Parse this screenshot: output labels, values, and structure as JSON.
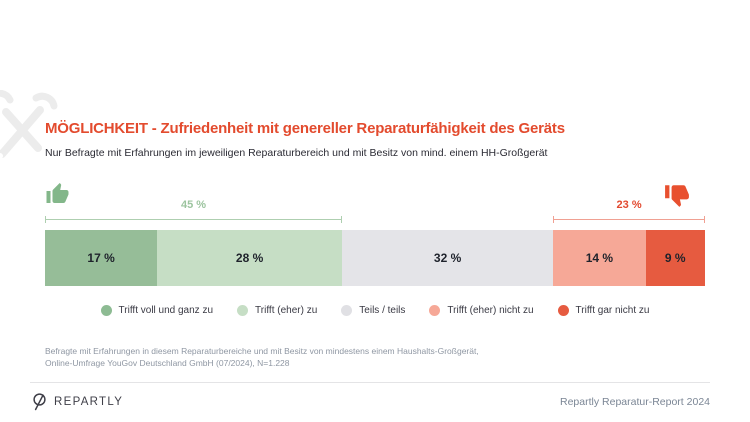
{
  "header": {
    "title": "MÖGLICHKEIT - Zufriedenheit mit genereller Reparaturfähigkeit des Geräts",
    "subtitle": "Nur Befragte mit Erfahrungen im jeweiligen Reparaturbereich und mit Besitz von mind. einem HH-Großgerät",
    "title_color": "#e34b2e"
  },
  "sentiment": {
    "positive_icon": "thumbs-up",
    "negative_icon": "thumbs-down",
    "positive_color": "#83b78a",
    "negative_color": "#e8502f"
  },
  "chart_data": {
    "type": "bar",
    "variant": "horizontal-stacked-100",
    "title": "MÖGLICHKEIT - Zufriedenheit mit genereller Reparaturfähigkeit des Geräts",
    "subtitle": "Nur Befragte mit Erfahrungen im jeweiligen Reparaturbereich und mit Besitz von mind. einem HH-Großgerät",
    "unit": "%",
    "xlim": [
      0,
      100
    ],
    "grid": false,
    "legend_position": "bottom",
    "categories": [
      "Trifft voll und ganz zu",
      "Trifft (eher) zu",
      "Teils / teils",
      "Trifft (eher) nicht zu",
      "Trifft gar nicht zu"
    ],
    "values": [
      17,
      28,
      32,
      14,
      9
    ],
    "value_labels": [
      "17 %",
      "28 %",
      "32 %",
      "14 %",
      "9 %"
    ],
    "colors": [
      "#96bd98",
      "#c6dec5",
      "#e4e4e8",
      "#f6a897",
      "#e65b40"
    ],
    "aggregates": {
      "positive": {
        "label": "45 %",
        "value": 45,
        "color": "#9cc49f",
        "line_color": "#aecfb0"
      },
      "negative": {
        "label": "23 %",
        "value": 23,
        "color": "#e2492f",
        "line_color": "#f0a092"
      }
    }
  },
  "legend": {
    "items": [
      {
        "label": "Trifft voll und ganz zu",
        "color": "#8dbb93"
      },
      {
        "label": "Trifft (eher) zu",
        "color": "#c6dec5"
      },
      {
        "label": "Teils / teils",
        "color": "#e0e0e4"
      },
      {
        "label": "Trifft (eher) nicht zu",
        "color": "#f6a897"
      },
      {
        "label": "Trifft gar nicht zu",
        "color": "#e65b40"
      }
    ]
  },
  "footnote": {
    "line1": "Befragte mit Erfahrungen in diesem Reparaturbereiche und mit Besitz von mindestens einem Haushalts-Großgerät,",
    "line2": "Online-Umfrage YouGov Deutschland GmbH (07/2024), N=1.228"
  },
  "footer": {
    "brand": "REPARTLY",
    "report_label": "Repartly Reparatur-Report 2024"
  }
}
